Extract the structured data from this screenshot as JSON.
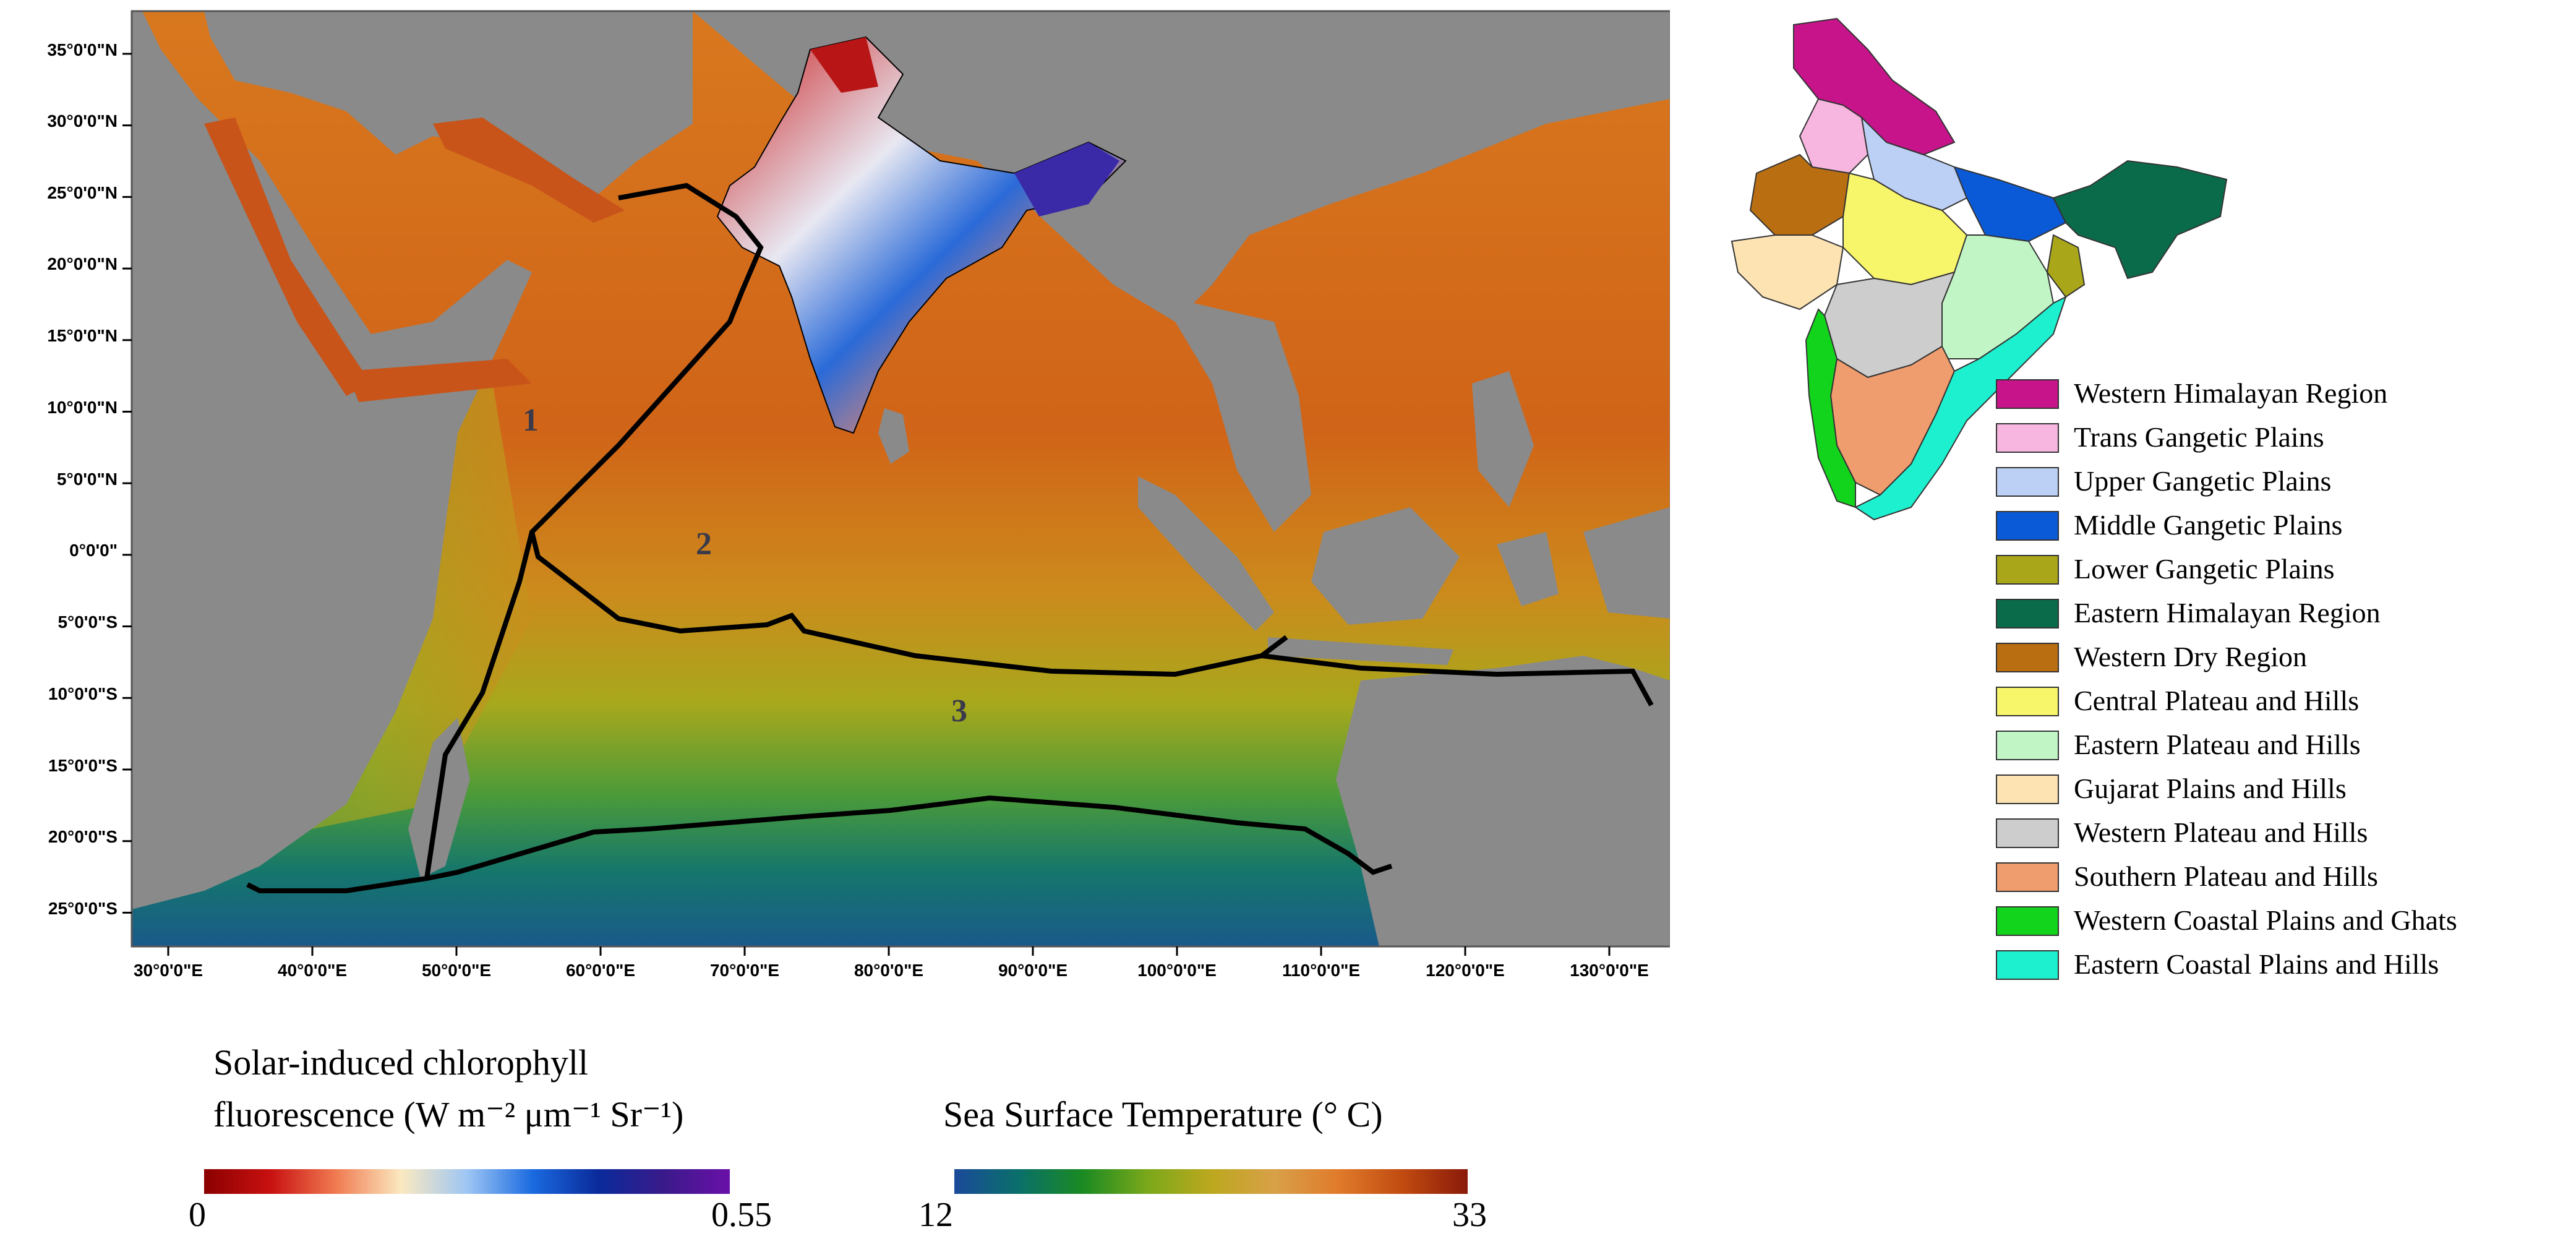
{
  "main_map": {
    "lat_labels": [
      "35°0'0\"N",
      "30°0'0\"N",
      "25°0'0\"N",
      "20°0'0\"N",
      "15°0'0\"N",
      "10°0'0\"N",
      "5°0'0\"N",
      "0°0'0\"",
      "5°0'0\"S",
      "10°0'0\"S",
      "15°0'0\"S",
      "20°0'0\"S",
      "25°0'0\"S"
    ],
    "lon_labels": [
      "30°0'0\"E",
      "40°0'0\"E",
      "50°0'0\"E",
      "60°0'0\"E",
      "70°0'0\"E",
      "80°0'0\"E",
      "90°0'0\"E",
      "100°0'0\"E",
      "110°0'0\"E",
      "120°0'0\"E",
      "130°0'0\"E"
    ],
    "region_numbers": [
      "1",
      "2",
      "3"
    ],
    "colors": {
      "land": "#8c8c8c",
      "boundary": "#000000"
    }
  },
  "legend": {
    "items": [
      {
        "label": "Western Himalayan Region",
        "color": "#c7148a"
      },
      {
        "label": "Trans Gangetic Plains",
        "color": "#f7b6e0"
      },
      {
        "label": "Upper Gangetic Plains",
        "color": "#bcd0f5"
      },
      {
        "label": "Middle Gangetic Plains",
        "color": "#0a5ad8"
      },
      {
        "label": "Lower Gangetic Plains",
        "color": "#a9a61a"
      },
      {
        "label": "Eastern Himalayan Region",
        "color": "#0a6b4a"
      },
      {
        "label": "Western Dry Region",
        "color": "#b96e12"
      },
      {
        "label": "Central Plateau and Hills",
        "color": "#f7f56a"
      },
      {
        "label": "Eastern Plateau and Hills",
        "color": "#c2f5c6"
      },
      {
        "label": "Gujarat Plains and Hills",
        "color": "#fde2b2"
      },
      {
        "label": "Western Plateau and Hills",
        "color": "#cdcdcd"
      },
      {
        "label": "Southern Plateau and Hills",
        "color": "#ef9c6e"
      },
      {
        "label": "Western Coastal Plains and Ghats",
        "color": "#12d41c"
      },
      {
        "label": "Eastern Coastal Plains and Hills",
        "color": "#1df0cf"
      }
    ]
  },
  "colorbars": {
    "sif": {
      "title_line1": "Solar-induced chlorophyll",
      "title_line2": "fluorescence (W m⁻² μm⁻¹ Sr⁻¹)",
      "min": "0",
      "max": "0.55",
      "gradient": [
        "#8b0000",
        "#c81010",
        "#f07a50",
        "#fbe9c0",
        "#9ec6f4",
        "#1a6ae0",
        "#0a2a9a",
        "#3a1a8a",
        "#6a10a8"
      ]
    },
    "sst": {
      "title": "Sea Surface Temperature (° C)",
      "min": "12",
      "max": "33",
      "gradient": [
        "#1a4a9a",
        "#0a6f6a",
        "#1a8a22",
        "#7aa81a",
        "#bca81e",
        "#d8a048",
        "#e07a2a",
        "#c04a10",
        "#8a1a0a"
      ]
    }
  }
}
